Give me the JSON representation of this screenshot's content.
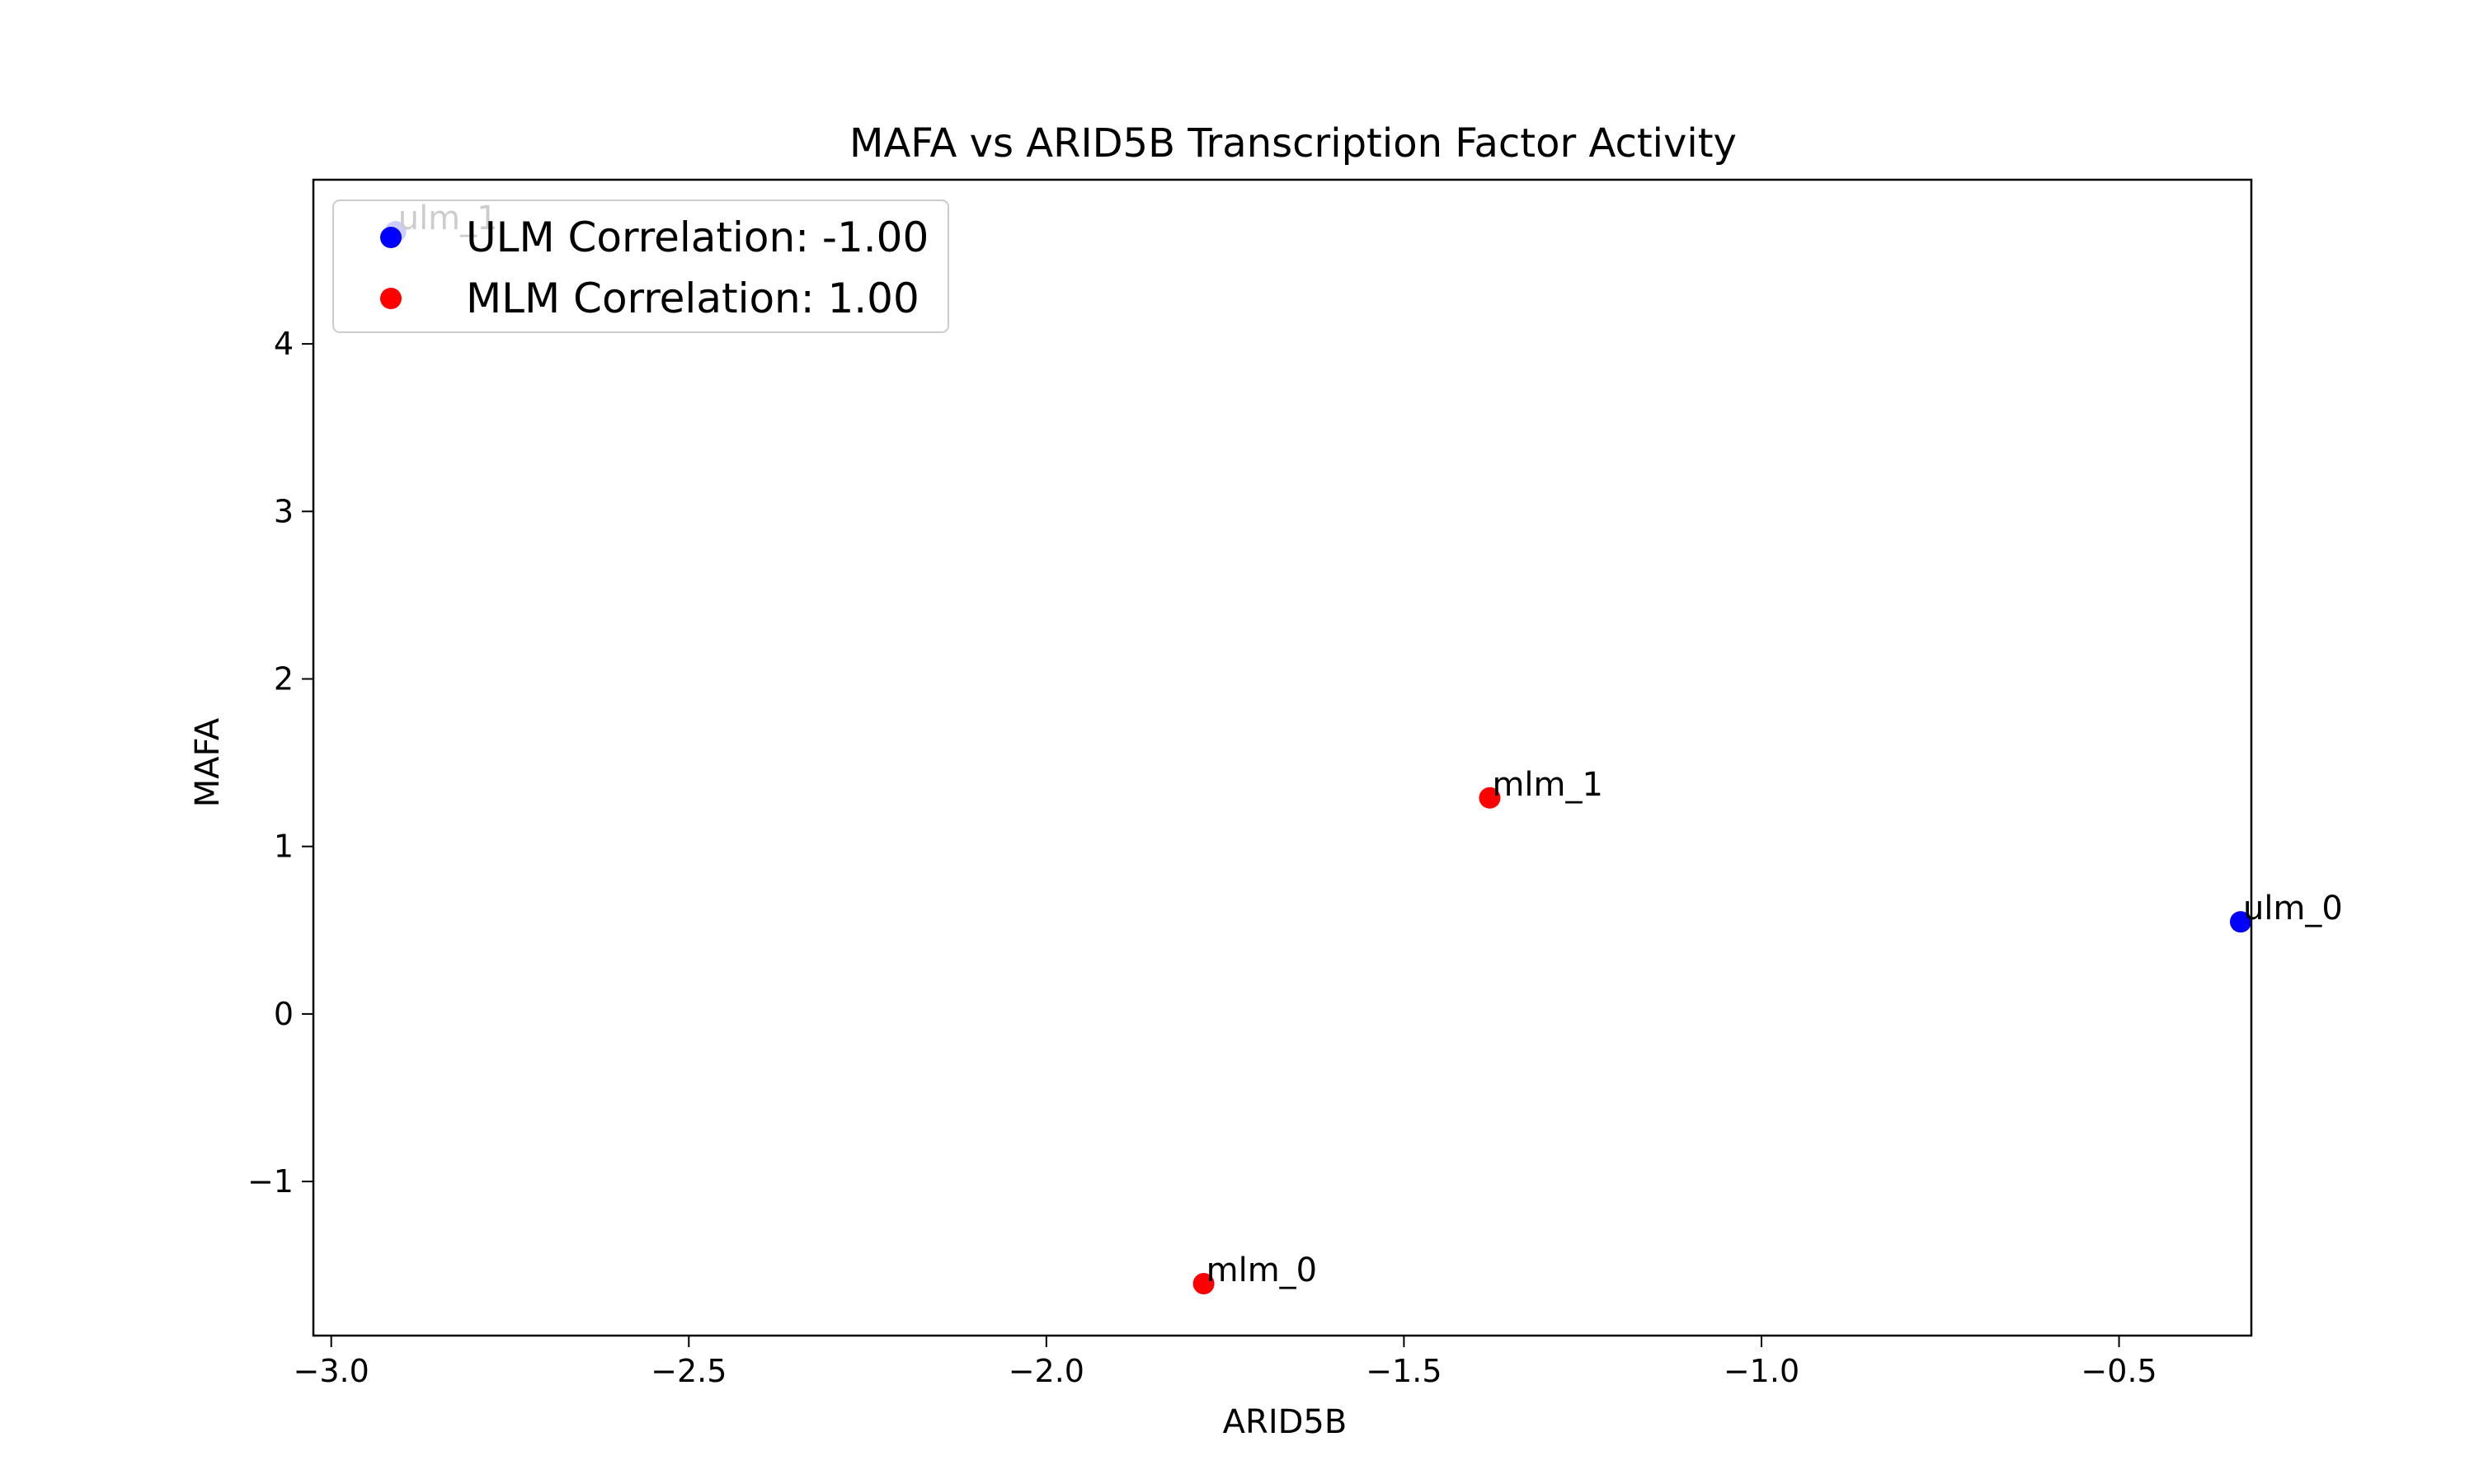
{
  "chart_data": {
    "type": "scatter",
    "title": "MAFA vs ARID5B Transcription Factor Activity",
    "xlabel": "ARID5B",
    "ylabel": "MAFA",
    "xlim": [
      -3.025,
      -0.315
    ],
    "ylim": [
      -1.92,
      4.98
    ],
    "xticks": [
      -3.0,
      -2.5,
      -2.0,
      -1.5,
      -1.0,
      -0.5
    ],
    "xtick_labels": [
      "−3.0",
      "−2.5",
      "−2.0",
      "−1.5",
      "−1.0",
      "−0.5"
    ],
    "yticks": [
      -1,
      0,
      1,
      2,
      3,
      4
    ],
    "ytick_labels": [
      "−1",
      "0",
      "1",
      "2",
      "3",
      "4"
    ],
    "grid": false,
    "legend_position": "top-left",
    "series": [
      {
        "name": "ULM Correlation: -1.00",
        "color": "#0000ff",
        "points": [
          {
            "label": "ulm_0",
            "x": -0.33,
            "y": 0.55
          },
          {
            "label": "ulm_1",
            "x": -2.91,
            "y": 4.67
          }
        ]
      },
      {
        "name": "MLM Correlation: 1.00",
        "color": "#ff0000",
        "points": [
          {
            "label": "mlm_0",
            "x": -1.78,
            "y": -1.61
          },
          {
            "label": "mlm_1",
            "x": -1.38,
            "y": 1.29
          }
        ]
      }
    ]
  }
}
